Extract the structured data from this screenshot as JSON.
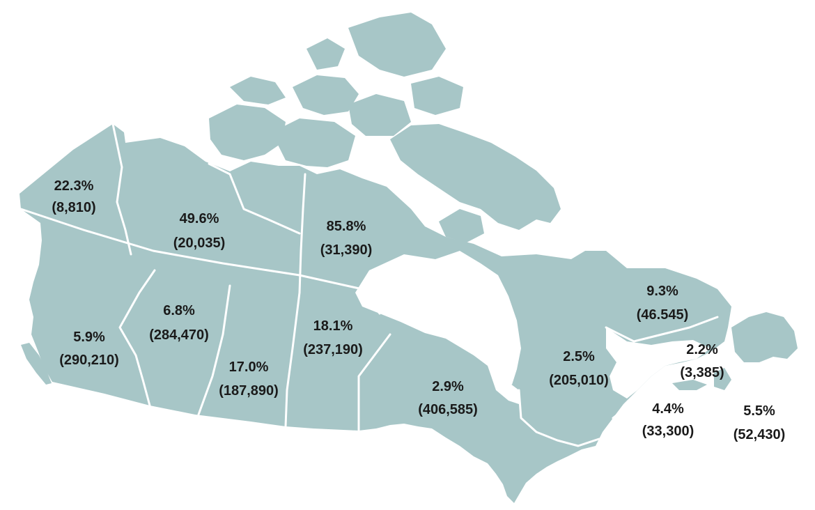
{
  "colors": {
    "land": "#a7c6c7",
    "border": "#ffffff",
    "water": "#ffffff",
    "text": "#1a1a1a"
  },
  "regions": [
    {
      "id": "yukon",
      "percent": "22.3%",
      "count": "(8,810)"
    },
    {
      "id": "northwest-territories",
      "percent": "49.6%",
      "count": "(20,035)"
    },
    {
      "id": "nunavut",
      "percent": "85.8%",
      "count": "(31,390)"
    },
    {
      "id": "british-columbia",
      "percent": "5.9%",
      "count": "(290,210)"
    },
    {
      "id": "alberta",
      "percent": "6.8%",
      "count": "(284,470)"
    },
    {
      "id": "saskatchewan",
      "percent": "17.0%",
      "count": "(187,890)"
    },
    {
      "id": "manitoba",
      "percent": "18.1%",
      "count": "(237,190)"
    },
    {
      "id": "ontario",
      "percent": "2.9%",
      "count": "(406,585)"
    },
    {
      "id": "quebec",
      "percent": "2.5%",
      "count": "(205,010)"
    },
    {
      "id": "newfoundland-and-labrador",
      "percent": "9.3%",
      "count": "(46.545)"
    },
    {
      "id": "prince-edward-island",
      "percent": "2.2%",
      "count": "(3,385)"
    },
    {
      "id": "new-brunswick",
      "percent": "4.4%",
      "count": "(33,300)"
    },
    {
      "id": "nova-scotia",
      "percent": "5.5%",
      "count": "(52,430)"
    }
  ]
}
